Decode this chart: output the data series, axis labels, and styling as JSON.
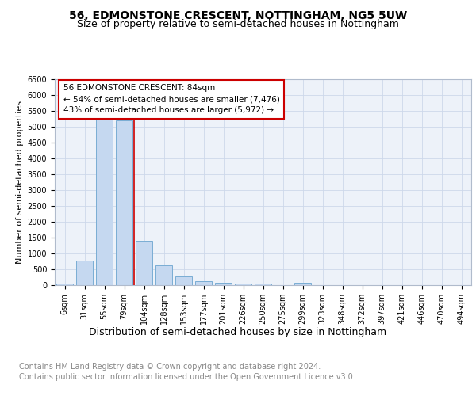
{
  "title": "56, EDMONSTONE CRESCENT, NOTTINGHAM, NG5 5UW",
  "subtitle": "Size of property relative to semi-detached houses in Nottingham",
  "xlabel": "Distribution of semi-detached houses by size in Nottingham",
  "ylabel": "Number of semi-detached properties",
  "categories": [
    "6sqm",
    "31sqm",
    "55sqm",
    "79sqm",
    "104sqm",
    "128sqm",
    "153sqm",
    "177sqm",
    "201sqm",
    "226sqm",
    "250sqm",
    "275sqm",
    "299sqm",
    "323sqm",
    "348sqm",
    "372sqm",
    "397sqm",
    "421sqm",
    "446sqm",
    "470sqm",
    "494sqm"
  ],
  "values": [
    50,
    780,
    5300,
    5200,
    1400,
    630,
    270,
    135,
    80,
    50,
    60,
    0,
    80,
    0,
    0,
    0,
    0,
    0,
    0,
    0,
    0
  ],
  "property_label": "56 EDMONSTONE CRESCENT: 84sqm",
  "smaller_pct": 54,
  "smaller_count": "7,476",
  "larger_pct": 43,
  "larger_count": "5,972",
  "bar_color": "#c5d8f0",
  "bar_edge_color": "#7aadd4",
  "vline_color": "#cc0000",
  "vline_index": 3,
  "annotation_box_color": "#ffffff",
  "annotation_box_edge": "#cc0000",
  "ylim": [
    0,
    6500
  ],
  "yticks": [
    0,
    500,
    1000,
    1500,
    2000,
    2500,
    3000,
    3500,
    4000,
    4500,
    5000,
    5500,
    6000,
    6500
  ],
  "grid_color": "#cdd8ea",
  "bg_color": "#edf2f9",
  "footer": "Contains HM Land Registry data © Crown copyright and database right 2024.\nContains public sector information licensed under the Open Government Licence v3.0.",
  "title_fontsize": 10,
  "subtitle_fontsize": 9,
  "axis_fontsize": 8,
  "tick_fontsize": 7,
  "footer_fontsize": 7,
  "xlabel_fontsize": 9
}
